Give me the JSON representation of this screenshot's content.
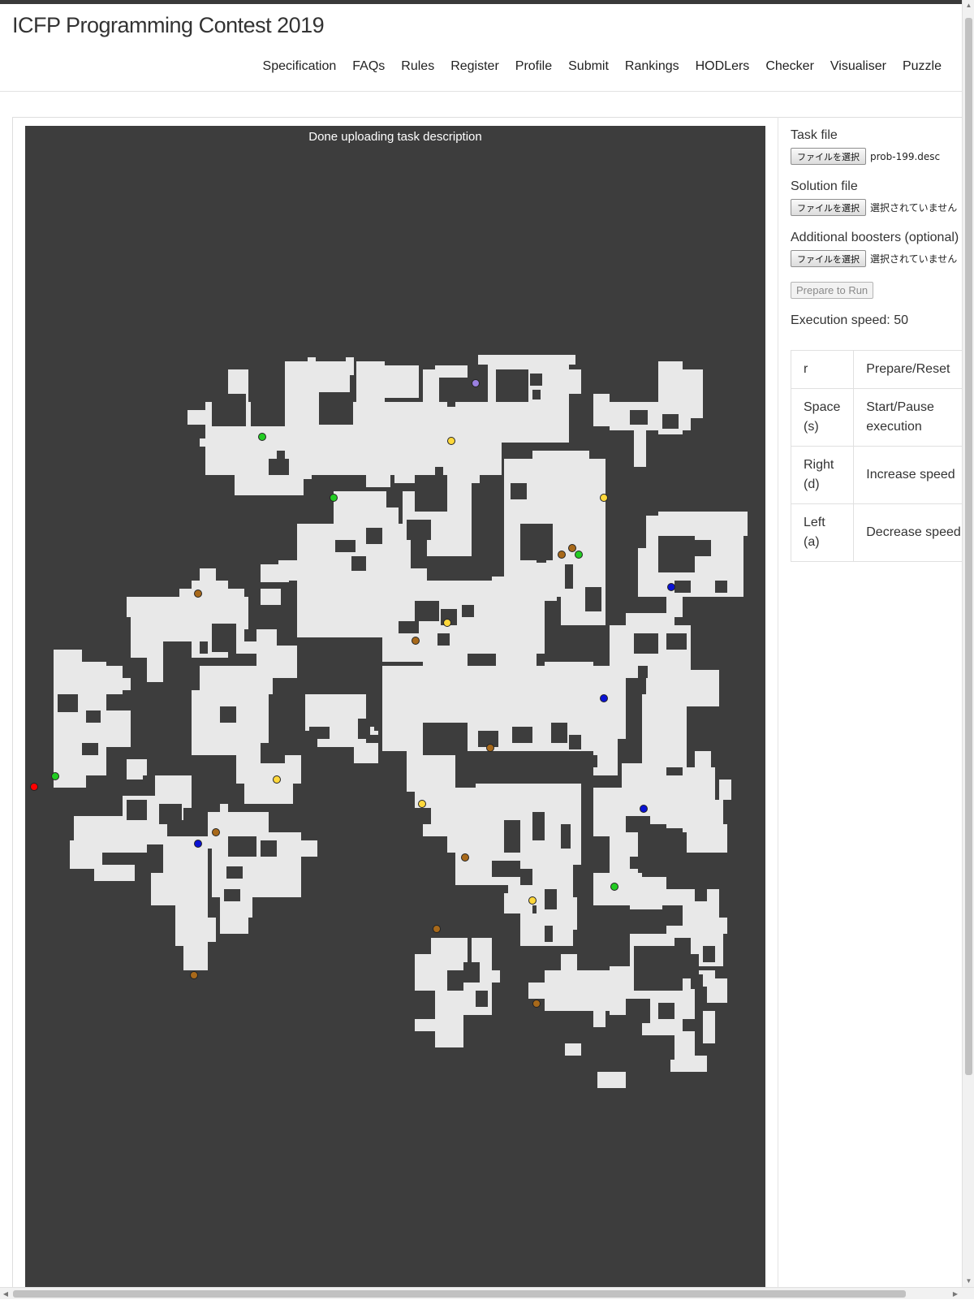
{
  "site": {
    "title": "ICFP Programming Contest 2019"
  },
  "nav": [
    {
      "label": "Specification"
    },
    {
      "label": "FAQs"
    },
    {
      "label": "Rules"
    },
    {
      "label": "Register"
    },
    {
      "label": "Profile"
    },
    {
      "label": "Submit"
    },
    {
      "label": "Rankings"
    },
    {
      "label": "HODLers"
    },
    {
      "label": "Checker"
    },
    {
      "label": "Visualiser"
    },
    {
      "label": "Puzzle"
    }
  ],
  "canvas": {
    "status": "Done uploading task description",
    "colors": {
      "background": "#3d3d3d",
      "floor": "#e8e8e8",
      "worker": "#ff0000"
    },
    "boosters": [
      {
        "type": "manipulator",
        "color": "#ffd83b"
      },
      {
        "type": "fast-wheels",
        "color": "#a8691a"
      },
      {
        "type": "drill",
        "color": "#22cc22"
      },
      {
        "type": "teleport",
        "color": "#0a12d4"
      },
      {
        "type": "cloning",
        "color": "#9a80e0"
      }
    ]
  },
  "panel": {
    "task_file": {
      "label": "Task file",
      "button": "ファイルを選択",
      "value": "prob-199.desc"
    },
    "solution_file": {
      "label": "Solution file",
      "button": "ファイルを選択",
      "value": "選択されていません"
    },
    "boosters_file": {
      "label": "Additional boosters (optional)",
      "button": "ファイルを選択",
      "value": "選択されていません"
    },
    "prepare_button": "Prepare to Run",
    "speed_label": "Execution speed:",
    "speed_value": "50"
  },
  "shortcuts": [
    {
      "key": "r",
      "action": "Prepare/Reset"
    },
    {
      "key": "Space (s)",
      "action": "Start/Pause execution"
    },
    {
      "key": "Right (d)",
      "action": "Increase speed"
    },
    {
      "key": "Left (a)",
      "action": "Decrease speed"
    }
  ]
}
